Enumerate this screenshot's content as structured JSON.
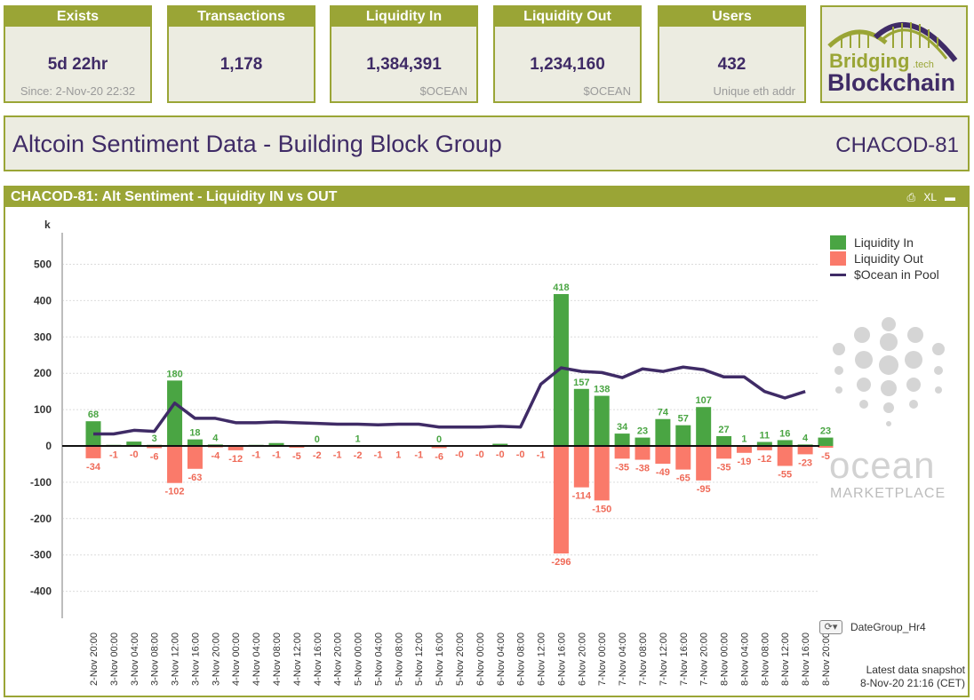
{
  "kpis": [
    {
      "label": "Exists",
      "value": "5d 22hr",
      "sub": "Since: 2-Nov-20 22:32"
    },
    {
      "label": "Transactions",
      "value": "1,178",
      "sub": ""
    },
    {
      "label": "Liquidity In",
      "value": "1,384,391",
      "sub": "$OCEAN"
    },
    {
      "label": "Liquidity Out",
      "value": "1,234,160",
      "sub": "$OCEAN"
    },
    {
      "label": "Users",
      "value": "432",
      "sub": "Unique eth addr"
    }
  ],
  "logo": {
    "line1": "Bridging",
    "tech": ".tech",
    "line2": "Blockchain"
  },
  "header": {
    "title": "Altcoin Sentiment Data - Building Block Group",
    "code": "CHACOD-81"
  },
  "panel": {
    "title": "CHACOD-81: Alt Sentiment - Liquidity IN vs OUT",
    "print_icon": "printer-icon",
    "xl_label": "XL"
  },
  "chart_data": {
    "type": "bar",
    "y_unit_label": "k",
    "ylim": [
      -450,
      560
    ],
    "yticks": [
      -400,
      -300,
      -200,
      -100,
      0,
      100,
      200,
      300,
      400,
      500
    ],
    "grid": true,
    "legend_position": "top-right",
    "categories": [
      "2-Nov 20:00",
      "3-Nov 00:00",
      "3-Nov 04:00",
      "3-Nov 08:00",
      "3-Nov 12:00",
      "3-Nov 16:00",
      "3-Nov 20:00",
      "4-Nov 00:00",
      "4-Nov 04:00",
      "4-Nov 08:00",
      "4-Nov 12:00",
      "4-Nov 16:00",
      "4-Nov 20:00",
      "5-Nov 00:00",
      "5-Nov 04:00",
      "5-Nov 08:00",
      "5-Nov 12:00",
      "5-Nov 16:00",
      "5-Nov 20:00",
      "6-Nov 00:00",
      "6-Nov 04:00",
      "6-Nov 08:00",
      "6-Nov 12:00",
      "6-Nov 16:00",
      "6-Nov 20:00",
      "7-Nov 00:00",
      "7-Nov 04:00",
      "7-Nov 08:00",
      "7-Nov 12:00",
      "7-Nov 16:00",
      "7-Nov 20:00",
      "8-Nov 00:00",
      "8-Nov 04:00",
      "8-Nov 08:00",
      "8-Nov 12:00",
      "8-Nov 16:00",
      "8-Nov 20:00"
    ],
    "series": [
      {
        "name": "Liquidity In",
        "kind": "bar",
        "color": "#4aa543",
        "values": [
          68,
          3,
          12,
          3,
          180,
          18,
          4,
          0,
          3,
          8,
          0,
          0,
          0,
          1,
          0,
          1,
          0,
          0,
          0,
          1,
          6,
          0,
          0,
          418,
          157,
          138,
          34,
          23,
          74,
          57,
          107,
          27,
          1,
          11,
          16,
          4,
          23
        ],
        "labels": [
          "68",
          "",
          "",
          "3",
          "180",
          "18",
          "4",
          "",
          "",
          "",
          "",
          "0",
          "",
          "1",
          "",
          "",
          "",
          "0",
          "",
          "",
          "",
          "",
          "",
          "418",
          "157",
          "138",
          "34",
          "23",
          "74",
          "57",
          "107",
          "27",
          "1",
          "11",
          "16",
          "4",
          "23"
        ]
      },
      {
        "name": "Liquidity Out",
        "kind": "bar",
        "color": "#fa7a6a",
        "values": [
          -34,
          -1,
          -0.5,
          -6,
          -102,
          -63,
          -4,
          -12,
          -1,
          -1,
          -5,
          -2,
          -1,
          -2,
          -1,
          -1,
          -1,
          -6,
          -0.5,
          -0.5,
          -0.5,
          -0.5,
          -1,
          -296,
          -114,
          -150,
          -35,
          -38,
          -49,
          -65,
          -95,
          -35,
          -19,
          -12,
          -55,
          -23,
          -5
        ],
        "labels": [
          "-34",
          "-1",
          "-0",
          "-6",
          "-102",
          "-63",
          "-4",
          "-12",
          "-1",
          "-1",
          "-5",
          "-2",
          "-1",
          "-2",
          "-1",
          "1",
          "-1",
          "-6",
          "-0",
          "-0",
          "-0",
          "-0",
          "-1",
          "-296",
          "-114",
          "-150",
          "-35",
          "-38",
          "-49",
          "-65",
          "-95",
          "-35",
          "-19",
          "-12",
          "-55",
          "-23",
          "-5"
        ]
      },
      {
        "name": "$Ocean in Pool",
        "kind": "line",
        "color": "#3f2b66",
        "values": [
          33,
          33,
          43,
          40,
          118,
          76,
          76,
          64,
          64,
          66,
          64,
          62,
          60,
          60,
          58,
          60,
          60,
          52,
          52,
          52,
          54,
          52,
          170,
          215,
          205,
          202,
          188,
          212,
          205,
          217,
          210,
          190,
          190,
          150,
          132,
          150,
          null
        ]
      }
    ]
  },
  "legend_items": [
    {
      "label": "Liquidity In",
      "color": "#4aa543",
      "kind": "box"
    },
    {
      "label": "Liquidity Out",
      "color": "#fa7a6a",
      "kind": "box"
    },
    {
      "label": "$Ocean in Pool",
      "color": "#3f2b66",
      "kind": "line"
    }
  ],
  "ocean_brand": {
    "word": "ocean",
    "sub": "MARKETPLACE"
  },
  "dategroup": {
    "label": "DateGroup_Hr4",
    "icon": "cycle-dropdown-icon"
  },
  "snapshot": {
    "line1": "Latest data snapshot",
    "line2": "8-Nov-20 21:16 (CET)"
  },
  "colors": {
    "accent": "#9aa536",
    "panel_bg": "#ecece1",
    "text_dark": "#3f2b66"
  }
}
